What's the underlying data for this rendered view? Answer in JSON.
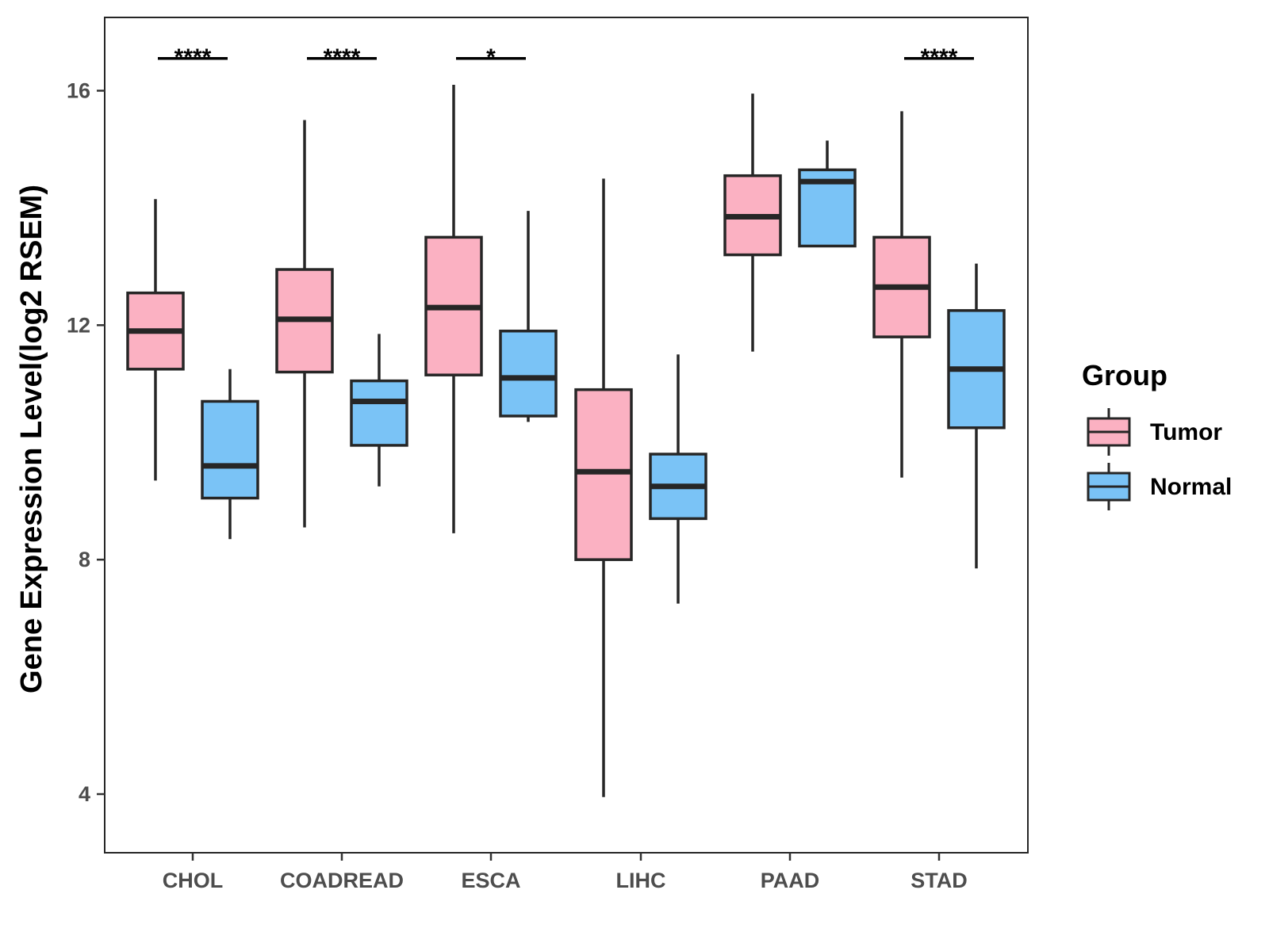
{
  "chart_data": {
    "type": "boxplot",
    "title": "",
    "xlabel": "",
    "ylabel": "Gene Expression Level(log2 RSEM)",
    "ylim": [
      3.0,
      17.25
    ],
    "yticks": [
      4,
      8,
      12,
      16
    ],
    "ytick_labels": [
      "4",
      "8",
      "12",
      "16"
    ],
    "categories": [
      "CHOL",
      "COADREAD",
      "ESCA",
      "LIHC",
      "PAAD",
      "STAD"
    ],
    "legend": {
      "title": "Group",
      "position": "right",
      "entries": [
        "Tumor",
        "Normal"
      ]
    },
    "series": [
      {
        "name": "Tumor",
        "color": "#FBB1C2",
        "boxes": [
          {
            "min": 9.35,
            "q1": 11.25,
            "median": 11.9,
            "q3": 12.55,
            "max": 14.15
          },
          {
            "min": 8.55,
            "q1": 11.2,
            "median": 12.1,
            "q3": 12.95,
            "max": 15.5
          },
          {
            "min": 8.45,
            "q1": 11.15,
            "median": 12.3,
            "q3": 13.5,
            "max": 16.1
          },
          {
            "min": 3.95,
            "q1": 8.0,
            "median": 9.5,
            "q3": 10.9,
            "max": 14.5
          },
          {
            "min": 11.55,
            "q1": 13.2,
            "median": 13.85,
            "q3": 14.55,
            "max": 15.95
          },
          {
            "min": 9.4,
            "q1": 11.8,
            "median": 12.65,
            "q3": 13.5,
            "max": 15.65
          }
        ]
      },
      {
        "name": "Normal",
        "color": "#7AC3F6",
        "boxes": [
          {
            "min": 8.35,
            "q1": 9.05,
            "median": 9.6,
            "q3": 10.7,
            "max": 11.25
          },
          {
            "min": 9.25,
            "q1": 9.95,
            "median": 10.7,
            "q3": 11.05,
            "max": 11.85
          },
          {
            "min": 10.35,
            "q1": 10.45,
            "median": 11.1,
            "q3": 11.9,
            "max": 13.95
          },
          {
            "min": 7.25,
            "q1": 8.7,
            "median": 9.25,
            "q3": 9.8,
            "max": 11.5
          },
          {
            "min": 13.35,
            "q1": 13.35,
            "median": 14.45,
            "q3": 14.65,
            "max": 15.15
          },
          {
            "min": 7.85,
            "q1": 10.25,
            "median": 11.25,
            "q3": 12.25,
            "max": 13.05
          }
        ]
      }
    ],
    "annotations": [
      {
        "category": "CHOL",
        "label": "****",
        "y": 16.55
      },
      {
        "category": "COADREAD",
        "label": "****",
        "y": 16.55
      },
      {
        "category": "ESCA",
        "label": "*",
        "y": 16.55
      },
      {
        "category": "STAD",
        "label": "****",
        "y": 16.55
      }
    ]
  }
}
